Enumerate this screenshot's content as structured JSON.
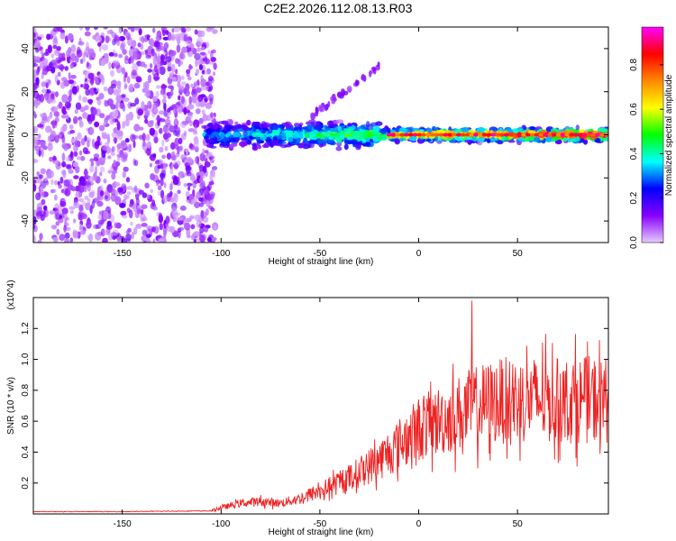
{
  "title": "C2E2.2026.112.08.13.R03",
  "chart_data": [
    {
      "type": "heatmap",
      "xlabel": "Height of straight line (km)",
      "ylabel": "Frequency (Hz)",
      "xlim": [
        -195,
        96
      ],
      "ylim": [
        -50,
        50
      ],
      "x_ticks": [
        -150,
        -100,
        -50,
        0,
        50
      ],
      "y_ticks": [
        -40,
        -20,
        0,
        20,
        40
      ],
      "colorbar": {
        "label": "Normalized spectral amplitude",
        "range": [
          0,
          0.97
        ],
        "ticks": [
          0.0,
          0.2,
          0.4,
          0.6,
          0.8
        ],
        "tick_labels": [
          "0.0",
          "0.2",
          "0.4",
          "0.6",
          "0.8"
        ],
        "colors": [
          "#e6ccff",
          "#8800ff",
          "#0000ff",
          "#00ffff",
          "#00ff00",
          "#ffff00",
          "#ff8800",
          "#ff0000",
          "#ff00ff"
        ]
      },
      "regions": [
        {
          "name": "noise",
          "x_range": [
            -195,
            -105
          ],
          "y_range": [
            -50,
            50
          ],
          "amplitude": 0.1
        },
        {
          "name": "echo band",
          "x_range": [
            -108,
            96
          ],
          "y_center": 0,
          "half_width_hz": 3,
          "amplitude": [
            0.25,
            0.97
          ]
        },
        {
          "name": "diagonal streak",
          "x_range": [
            -55,
            -20
          ],
          "y_range": [
            8,
            32
          ],
          "amplitude": 0.1
        }
      ]
    },
    {
      "type": "line",
      "xlabel": "Height of straight line (km)",
      "ylabel": "SNR (10 * v/v)",
      "y_multiplier": "(x10^4)",
      "xlim": [
        -195,
        96
      ],
      "ylim": [
        0,
        1.4
      ],
      "x_ticks": [
        -150,
        -100,
        -50,
        0,
        50
      ],
      "y_ticks": [
        0.2,
        0.4,
        0.6,
        0.8,
        1.0,
        1.2
      ],
      "series": [
        {
          "color": "#ee2222",
          "envelope": {
            "x": [
              -195,
              -150,
              -105,
              -100,
              -90,
              -80,
              -70,
              -60,
              -50,
              -40,
              -30,
              -20,
              -10,
              0,
              10,
              20,
              30,
              40,
              50,
              60,
              70,
              80,
              96
            ],
            "y": [
              0.015,
              0.015,
              0.02,
              0.04,
              0.07,
              0.08,
              0.07,
              0.1,
              0.15,
              0.2,
              0.27,
              0.35,
              0.45,
              0.55,
              0.6,
              0.65,
              0.7,
              0.73,
              0.74,
              0.74,
              0.73,
              0.74,
              0.74
            ]
          },
          "peak_value": 1.38,
          "peak_x": 27
        }
      ]
    }
  ]
}
